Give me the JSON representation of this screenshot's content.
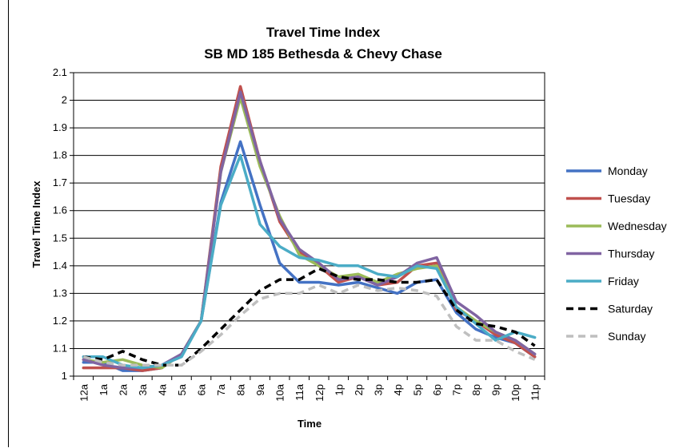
{
  "chart_data": {
    "type": "line",
    "title": "Travel Time Index",
    "subtitle": "SB MD 185 Bethesda & Chevy Chase",
    "xlabel": "Time",
    "ylabel": "Travel Time Index",
    "ylim": [
      1,
      2.1
    ],
    "yticks": [
      "1",
      "1.1",
      "1.2",
      "1.3",
      "1.4",
      "1.5",
      "1.6",
      "1.7",
      "1.8",
      "1.9",
      "2",
      "2.1"
    ],
    "grid": true,
    "legend_position": "right",
    "categories": [
      "12a",
      "1a",
      "2a",
      "3a",
      "4a",
      "5a",
      "6a",
      "7a",
      "8a",
      "9a",
      "10a",
      "11a",
      "12p",
      "1p",
      "2p",
      "3p",
      "4p",
      "5p",
      "6p",
      "7p",
      "8p",
      "9p",
      "10p",
      "11p"
    ],
    "series": [
      {
        "name": "Monday",
        "color": "#4472C4",
        "dash": "solid",
        "values": [
          1.05,
          1.05,
          1.02,
          1.02,
          1.03,
          1.08,
          1.2,
          1.63,
          1.85,
          1.62,
          1.41,
          1.34,
          1.34,
          1.33,
          1.34,
          1.32,
          1.3,
          1.34,
          1.35,
          1.23,
          1.17,
          1.14,
          1.12,
          1.07
        ]
      },
      {
        "name": "Tuesday",
        "color": "#C0504D",
        "dash": "solid",
        "values": [
          1.03,
          1.03,
          1.03,
          1.02,
          1.03,
          1.08,
          1.2,
          1.76,
          2.05,
          1.78,
          1.56,
          1.45,
          1.4,
          1.34,
          1.36,
          1.33,
          1.34,
          1.4,
          1.41,
          1.24,
          1.2,
          1.15,
          1.12,
          1.07
        ]
      },
      {
        "name": "Wednesday",
        "color": "#9BBB59",
        "dash": "solid",
        "values": [
          1.06,
          1.05,
          1.06,
          1.04,
          1.03,
          1.08,
          1.2,
          1.74,
          2.01,
          1.76,
          1.58,
          1.44,
          1.4,
          1.36,
          1.37,
          1.34,
          1.37,
          1.39,
          1.4,
          1.25,
          1.2,
          1.16,
          1.13,
          1.08
        ]
      },
      {
        "name": "Thursday",
        "color": "#8064A2",
        "dash": "solid",
        "values": [
          1.06,
          1.04,
          1.03,
          1.03,
          1.04,
          1.08,
          1.2,
          1.74,
          2.03,
          1.78,
          1.57,
          1.46,
          1.41,
          1.35,
          1.36,
          1.33,
          1.36,
          1.41,
          1.43,
          1.27,
          1.22,
          1.16,
          1.13,
          1.08
        ]
      },
      {
        "name": "Friday",
        "color": "#4BACC6",
        "dash": "solid",
        "values": [
          1.07,
          1.07,
          1.04,
          1.03,
          1.04,
          1.07,
          1.2,
          1.62,
          1.8,
          1.55,
          1.47,
          1.43,
          1.42,
          1.4,
          1.4,
          1.37,
          1.36,
          1.4,
          1.39,
          1.25,
          1.19,
          1.13,
          1.16,
          1.14
        ]
      },
      {
        "name": "Saturday",
        "color": "#000000",
        "dash": "dashed",
        "values": [
          1.07,
          1.06,
          1.09,
          1.06,
          1.04,
          1.04,
          1.1,
          1.17,
          1.24,
          1.31,
          1.35,
          1.35,
          1.39,
          1.36,
          1.35,
          1.35,
          1.34,
          1.34,
          1.35,
          1.24,
          1.19,
          1.18,
          1.16,
          1.11
        ]
      },
      {
        "name": "Sunday",
        "color": "#BFBFBF",
        "dash": "dashed",
        "values": [
          1.07,
          1.05,
          1.04,
          1.04,
          1.04,
          1.04,
          1.09,
          1.15,
          1.22,
          1.28,
          1.3,
          1.3,
          1.33,
          1.3,
          1.33,
          1.31,
          1.32,
          1.31,
          1.29,
          1.18,
          1.13,
          1.13,
          1.09,
          1.06
        ]
      }
    ]
  }
}
